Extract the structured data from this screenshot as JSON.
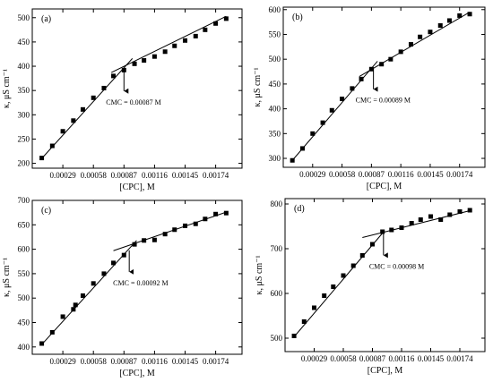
{
  "chart_data": [
    {
      "type": "scatter",
      "panel_label": "(a)",
      "xlabel": "[CPC], M",
      "ylabel": "κ, μS cm⁻¹",
      "xlim": [
        0,
        0.00199
      ],
      "ylim": [
        190,
        518
      ],
      "xticks": [
        0.00029,
        0.00058,
        0.00087,
        0.00116,
        0.00145,
        0.00174
      ],
      "xtick_labels": [
        "0.00029",
        "0.00058",
        "0.00087",
        "0.00116",
        "0.00145",
        "0.00174"
      ],
      "yticks": [
        200,
        250,
        300,
        350,
        400,
        450,
        500
      ],
      "ytick_labels": [
        "200",
        "250",
        "300",
        "350",
        "400",
        "450",
        "500"
      ],
      "x": [
        9e-05,
        0.00019,
        0.00029,
        0.00039,
        0.00048,
        0.00058,
        0.00068,
        0.00077,
        0.00087,
        0.00097,
        0.00106,
        0.00116,
        0.00126,
        0.00135,
        0.00145,
        0.00155,
        0.00164,
        0.00174,
        0.00184
      ],
      "y": [
        211,
        236,
        266,
        288,
        311,
        335,
        355,
        380,
        392,
        405,
        412,
        420,
        430,
        442,
        453,
        462,
        475,
        488,
        498
      ],
      "fit_lines": [
        {
          "x": [
            9e-05,
            0.00095
          ],
          "y": [
            210,
            416
          ]
        },
        {
          "x": [
            0.00075,
            0.00184
          ],
          "y": [
            387,
            503
          ]
        }
      ],
      "annotation": {
        "text": "CMC = 0.00087 M",
        "x": 0.00087
      }
    },
    {
      "type": "scatter",
      "panel_label": "(b)",
      "xlabel": "[CPC], M",
      "ylabel": "κ, μS cm⁻¹",
      "xlim": [
        0,
        0.00199
      ],
      "ylim": [
        282,
        605
      ],
      "xticks": [
        0.00029,
        0.00058,
        0.00087,
        0.00116,
        0.00145,
        0.00174
      ],
      "xtick_labels": [
        "0.00029",
        "0.00058",
        "0.00087",
        "0.00116",
        "0.00145",
        "0.00174"
      ],
      "yticks": [
        300,
        350,
        400,
        450,
        500,
        550,
        600
      ],
      "ytick_labels": [
        "300",
        "350",
        "400",
        "450",
        "500",
        "550",
        "600"
      ],
      "x": [
        9e-05,
        0.00019,
        0.00029,
        0.00039,
        0.00048,
        0.00058,
        0.00068,
        0.00077,
        0.00087,
        0.00097,
        0.00106,
        0.00116,
        0.00126,
        0.00135,
        0.00145,
        0.00155,
        0.00164,
        0.00174,
        0.00184
      ],
      "y": [
        296,
        320,
        350,
        372,
        397,
        420,
        441,
        460,
        480,
        490,
        500,
        515,
        530,
        545,
        555,
        568,
        578,
        588,
        591
      ],
      "fit_lines": [
        {
          "x": [
            9e-05,
            0.00093
          ],
          "y": [
            296,
            496
          ]
        },
        {
          "x": [
            0.00075,
            0.00184
          ],
          "y": [
            465,
            595
          ]
        }
      ],
      "annotation": {
        "text": "CMC = 0.00089 M",
        "x": 0.00089
      }
    },
    {
      "type": "scatter",
      "panel_label": "(c)",
      "xlabel": "[CPC], M",
      "ylabel": "κ, μS cm⁻¹",
      "xlim": [
        0,
        0.00199
      ],
      "ylim": [
        385,
        700
      ],
      "xticks": [
        0.00029,
        0.00058,
        0.00087,
        0.00116,
        0.00145,
        0.00174
      ],
      "xtick_labels": [
        "0.00029",
        "0.00058",
        "0.00087",
        "0.00116",
        "0.00145",
        "0.00174"
      ],
      "yticks": [
        400,
        450,
        500,
        550,
        600,
        650,
        700
      ],
      "ytick_labels": [
        "400",
        "450",
        "500",
        "550",
        "600",
        "650",
        "700"
      ],
      "x": [
        9e-05,
        0.00019,
        0.00029,
        0.00039,
        0.00041,
        0.00048,
        0.00058,
        0.00068,
        0.00077,
        0.00087,
        0.00097,
        0.00106,
        0.00116,
        0.00126,
        0.00135,
        0.00145,
        0.00155,
        0.00164,
        0.00174,
        0.00184
      ],
      "y": [
        407,
        430,
        462,
        477,
        486,
        505,
        530,
        550,
        572,
        588,
        610,
        618,
        619,
        631,
        640,
        648,
        652,
        662,
        672,
        674
      ],
      "fit_lines": [
        {
          "x": [
            9e-05,
            0.00099
          ],
          "y": [
            405,
            618
          ]
        },
        {
          "x": [
            0.00077,
            0.00184
          ],
          "y": [
            597,
            676
          ]
        }
      ],
      "annotation": {
        "text": "CMC = 0.00092 M",
        "x": 0.00092
      }
    },
    {
      "type": "scatter",
      "panel_label": "(d)",
      "xlabel": "[CPC], M",
      "ylabel": "κ, μS cm⁻¹",
      "xlim": [
        0,
        0.00199
      ],
      "ylim": [
        470,
        812
      ],
      "xticks": [
        0.00029,
        0.00058,
        0.00087,
        0.00116,
        0.00145,
        0.00174
      ],
      "xtick_labels": [
        "0.00029",
        "0.00058",
        "0.00087",
        "0.00116",
        "0.00145",
        "0.00174"
      ],
      "yticks": [
        500,
        600,
        700,
        800
      ],
      "ytick_labels": [
        "500",
        "600",
        "700",
        "800"
      ],
      "x": [
        9e-05,
        0.00019,
        0.00029,
        0.00039,
        0.00048,
        0.00058,
        0.00068,
        0.00077,
        0.00087,
        0.00097,
        0.00106,
        0.00116,
        0.00126,
        0.00135,
        0.00145,
        0.00155,
        0.00164,
        0.00174,
        0.00184
      ],
      "y": [
        505,
        537,
        568,
        595,
        615,
        640,
        662,
        685,
        710,
        738,
        742,
        747,
        757,
        765,
        772,
        765,
        776,
        783,
        786
      ],
      "fit_lines": [
        {
          "x": [
            9e-05,
            0.00099
          ],
          "y": [
            503,
            740
          ]
        },
        {
          "x": [
            0.00077,
            0.00184
          ],
          "y": [
            725,
            785
          ]
        }
      ],
      "annotation": {
        "text": "CMC = 0.00098 M",
        "x": 0.00098
      }
    }
  ]
}
